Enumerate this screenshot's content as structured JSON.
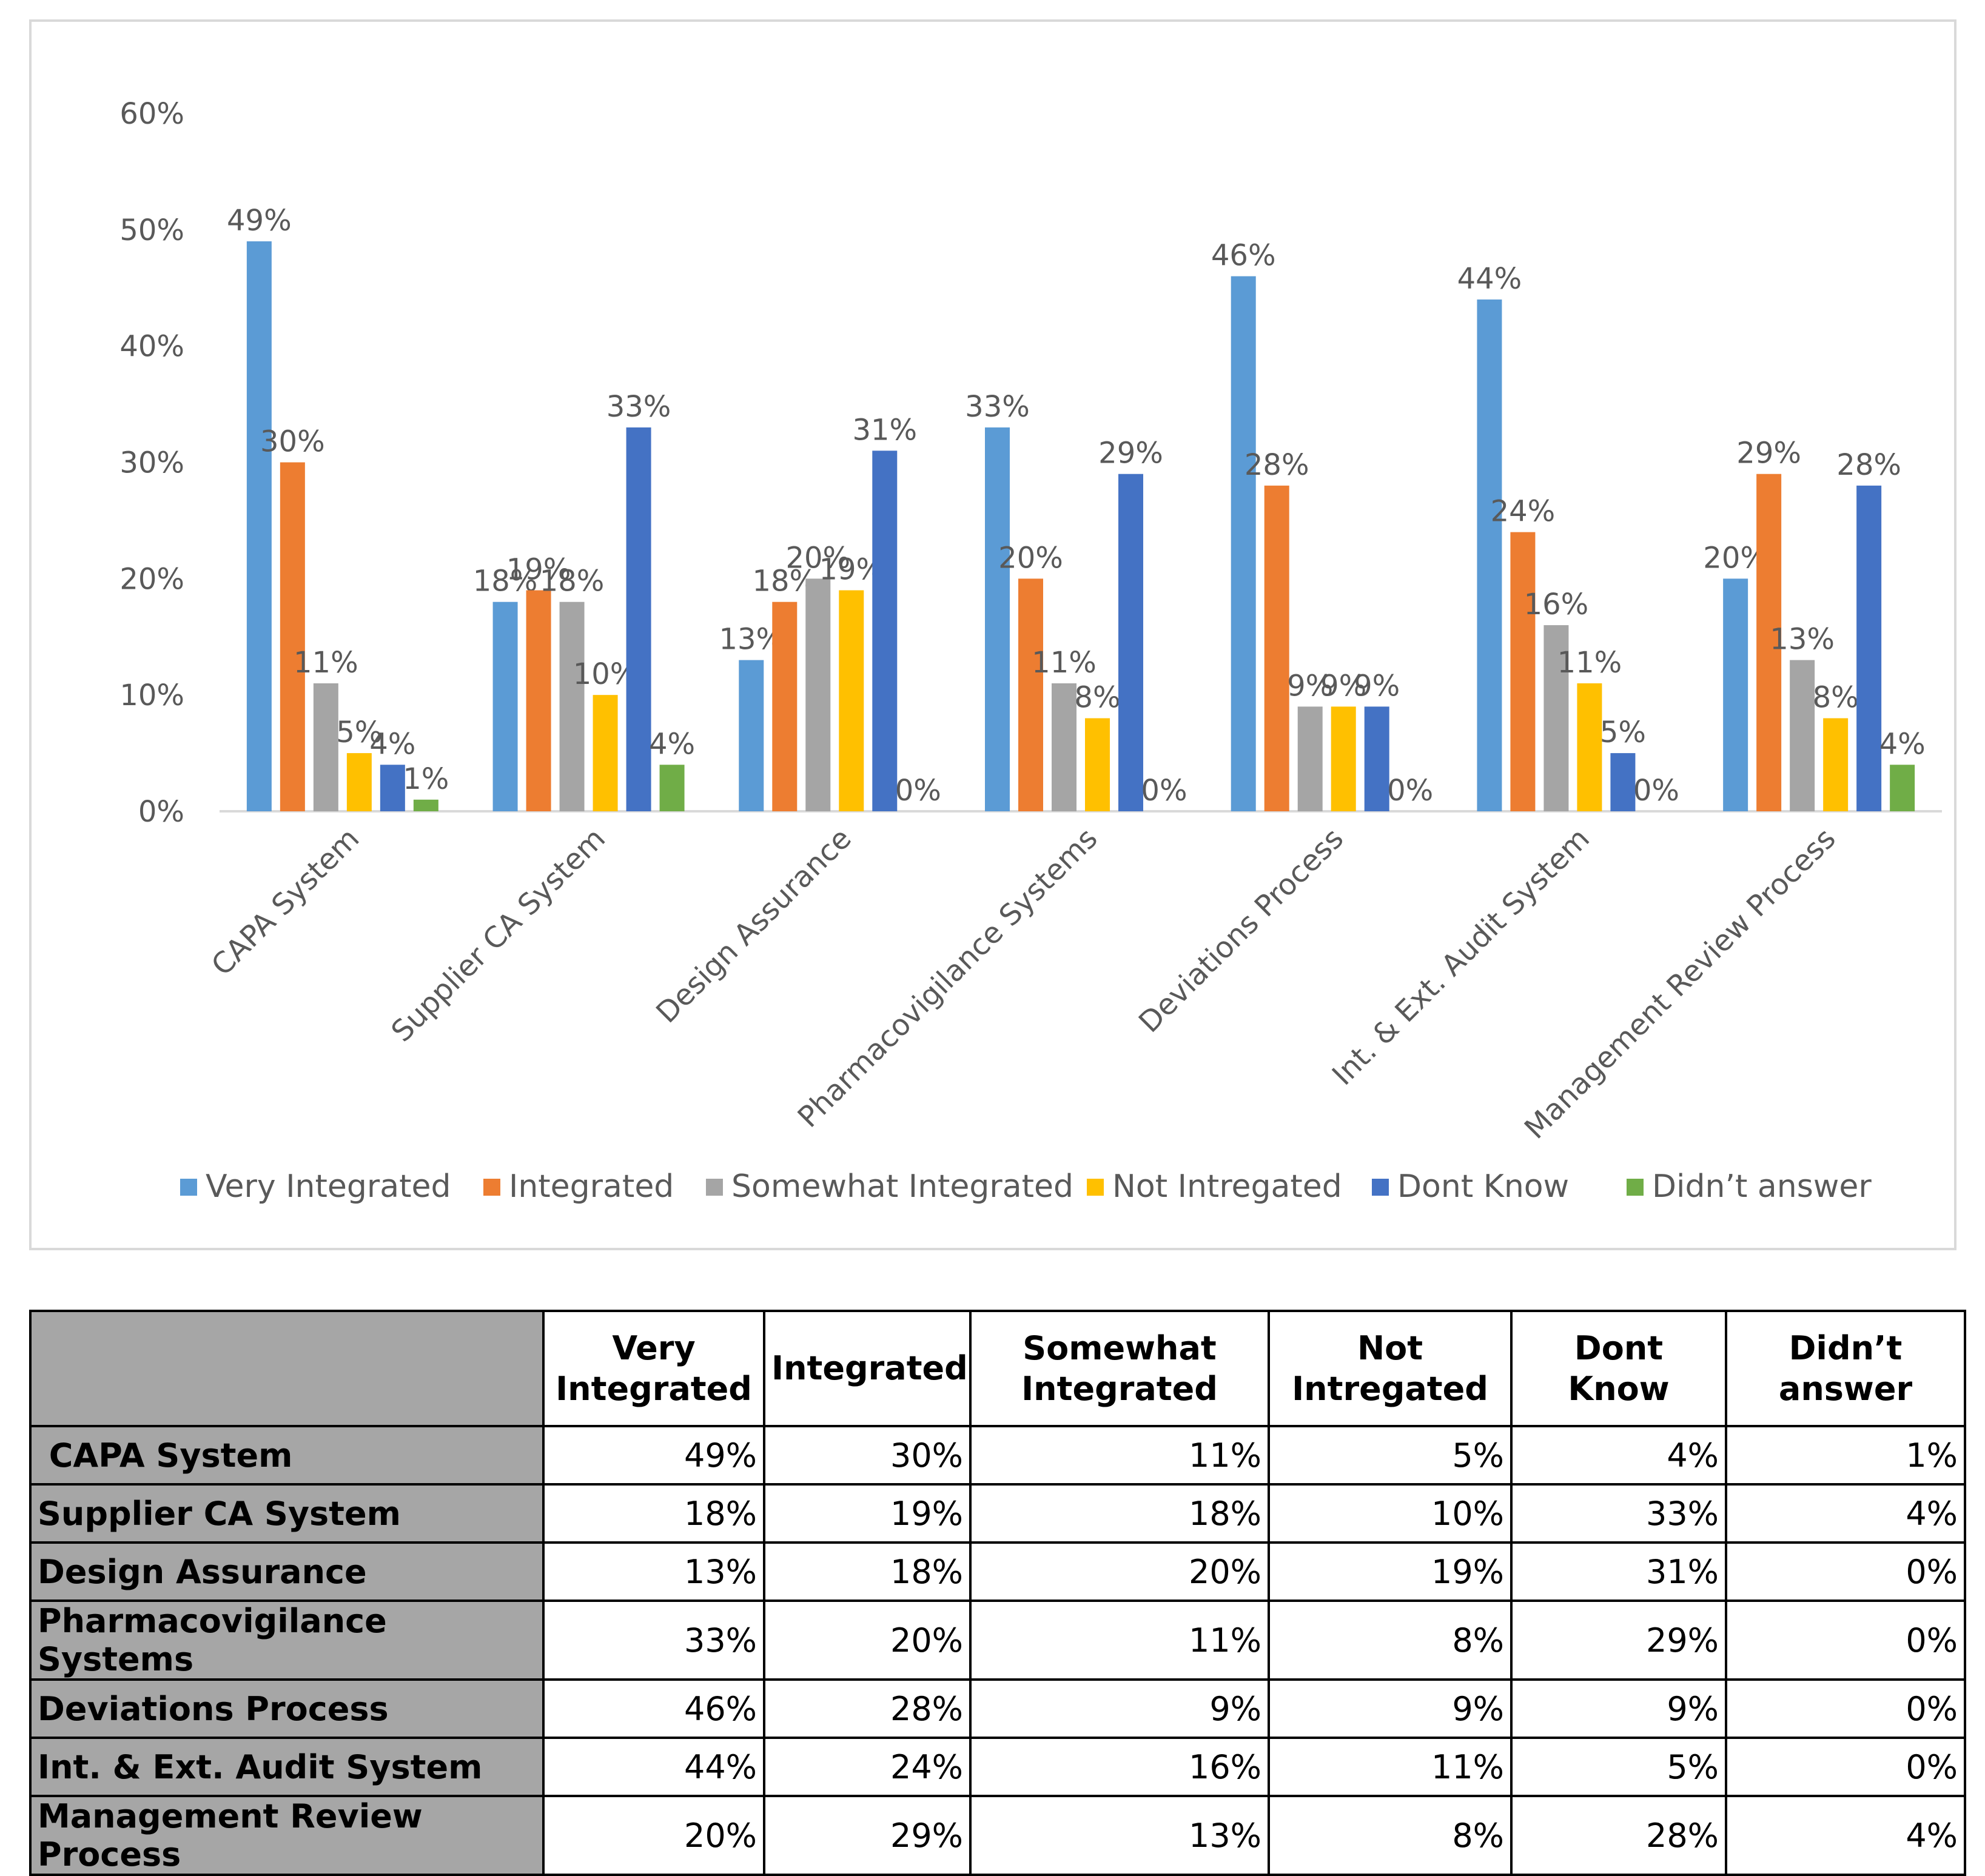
{
  "chart_data": {
    "type": "bar",
    "title": "",
    "xlabel": "",
    "ylabel": "",
    "ylim": [
      0,
      60
    ],
    "y_ticks": [
      "0%",
      "10%",
      "20%",
      "30%",
      "40%",
      "50%",
      "60%"
    ],
    "grid": false,
    "legend_position": "bottom",
    "categories": [
      "CAPA System",
      "Supplier CA System",
      "Design Assurance",
      "Pharmacovigilance Systems",
      "Deviations Process",
      "Int. & Ext. Audit System",
      "Management Review Process"
    ],
    "series": [
      {
        "name": "Very Integrated",
        "color": "#5b9bd5",
        "values": [
          49,
          18,
          13,
          33,
          46,
          44,
          20
        ]
      },
      {
        "name": "Integrated",
        "color": "#ed7d31",
        "values": [
          30,
          19,
          18,
          20,
          28,
          24,
          29
        ]
      },
      {
        "name": "Somewhat Integrated",
        "color": "#a5a5a5",
        "values": [
          11,
          18,
          20,
          11,
          9,
          16,
          13
        ]
      },
      {
        "name": "Not Intregated",
        "color": "#ffc000",
        "values": [
          5,
          10,
          19,
          8,
          9,
          11,
          8
        ]
      },
      {
        "name": "Dont Know",
        "color": "#4472c4",
        "values": [
          4,
          33,
          31,
          29,
          9,
          5,
          28
        ]
      },
      {
        "name": "Didn’t answer",
        "color": "#70ad47",
        "values": [
          1,
          4,
          0,
          0,
          0,
          0,
          4
        ]
      }
    ]
  },
  "table": {
    "headers": [
      "",
      "Very Integrated",
      "Integrated",
      "Somewhat Integrated",
      "Not Intregated",
      "Dont Know",
      "Didn’t answer"
    ],
    "rows": [
      {
        "label": " CAPA System",
        "cells": [
          "49%",
          "30%",
          "11%",
          "5%",
          "4%",
          "1%"
        ]
      },
      {
        "label": "Supplier CA System",
        "cells": [
          "18%",
          "19%",
          "18%",
          "10%",
          "33%",
          "4%"
        ]
      },
      {
        "label": "Design Assurance",
        "cells": [
          "13%",
          "18%",
          "20%",
          "19%",
          "31%",
          "0%"
        ]
      },
      {
        "label": "Pharmacovigilance Systems",
        "cells": [
          "33%",
          "20%",
          "11%",
          "8%",
          "29%",
          "0%"
        ]
      },
      {
        "label": "Deviations Process",
        "cells": [
          "46%",
          "28%",
          "9%",
          "9%",
          "9%",
          "0%"
        ]
      },
      {
        "label": "Int. & Ext. Audit System",
        "cells": [
          "44%",
          "24%",
          "16%",
          "11%",
          "5%",
          "0%"
        ]
      },
      {
        "label": "Management Review Process",
        "cells": [
          "20%",
          "29%",
          "13%",
          "8%",
          "28%",
          "4%"
        ]
      }
    ]
  }
}
